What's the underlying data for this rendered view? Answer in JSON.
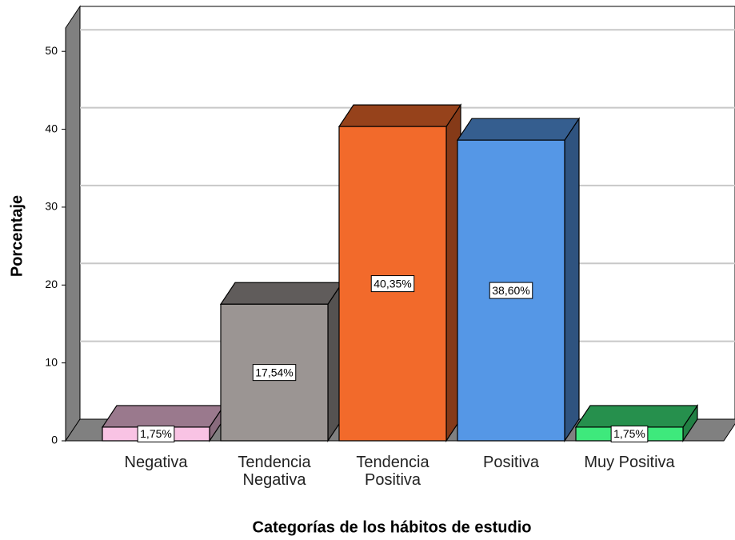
{
  "chart_data": {
    "type": "bar3d",
    "x_label": "Categorías de los hábitos de estudio",
    "y_label": "Porcentaje",
    "categories": [
      "Negativa",
      "Tendencia Negativa",
      "Tendencia Positiva",
      "Positiva",
      "Muy Positiva"
    ],
    "values": [
      1.75,
      17.54,
      40.35,
      38.6,
      1.75
    ],
    "value_labels": [
      "1,75%",
      "17,54%",
      "40,35%",
      "38,60%",
      "1,75%"
    ],
    "colors": [
      "#f9c3e4",
      "#9b9593",
      "#f26a2b",
      "#5597e6",
      "#3ee97c"
    ],
    "ylim": [
      0,
      53
    ],
    "yticks": [
      0,
      10,
      20,
      30,
      40,
      50
    ],
    "grid": true
  }
}
